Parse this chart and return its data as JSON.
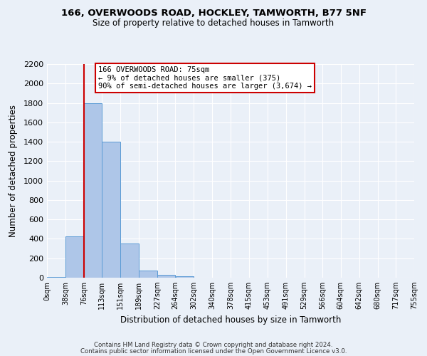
{
  "title": "166, OVERWOODS ROAD, HOCKLEY, TAMWORTH, B77 5NF",
  "subtitle": "Size of property relative to detached houses in Tamworth",
  "xlabel": "Distribution of detached houses by size in Tamworth",
  "ylabel": "Number of detached properties",
  "bin_edges": [
    0,
    38,
    76,
    113,
    151,
    189,
    227,
    264,
    302,
    340,
    378,
    415,
    453,
    491,
    529,
    566,
    604,
    642,
    680,
    717,
    755
  ],
  "bin_labels": [
    "0sqm",
    "38sqm",
    "76sqm",
    "113sqm",
    "151sqm",
    "189sqm",
    "227sqm",
    "264sqm",
    "302sqm",
    "340sqm",
    "378sqm",
    "415sqm",
    "453sqm",
    "491sqm",
    "529sqm",
    "566sqm",
    "604sqm",
    "642sqm",
    "680sqm",
    "717sqm",
    "755sqm"
  ],
  "counts": [
    5,
    425,
    1800,
    1400,
    350,
    75,
    30,
    15,
    0,
    0,
    0,
    0,
    0,
    0,
    0,
    0,
    0,
    0,
    0,
    0
  ],
  "bar_color": "#aec6e8",
  "bar_edge_color": "#5b9bd5",
  "property_line_x": 76,
  "annotation_title": "166 OVERWOODS ROAD: 75sqm",
  "annotation_line1": "← 9% of detached houses are smaller (375)",
  "annotation_line2": "90% of semi-detached houses are larger (3,674) →",
  "annotation_box_color": "#ffffff",
  "annotation_box_edge_color": "#cc0000",
  "red_line_color": "#cc0000",
  "ylim": [
    0,
    2200
  ],
  "yticks": [
    0,
    200,
    400,
    600,
    800,
    1000,
    1200,
    1400,
    1600,
    1800,
    2000,
    2200
  ],
  "bg_color": "#eaf0f8",
  "grid_color": "#ffffff",
  "footer1": "Contains HM Land Registry data © Crown copyright and database right 2024.",
  "footer2": "Contains public sector information licensed under the Open Government Licence v3.0."
}
